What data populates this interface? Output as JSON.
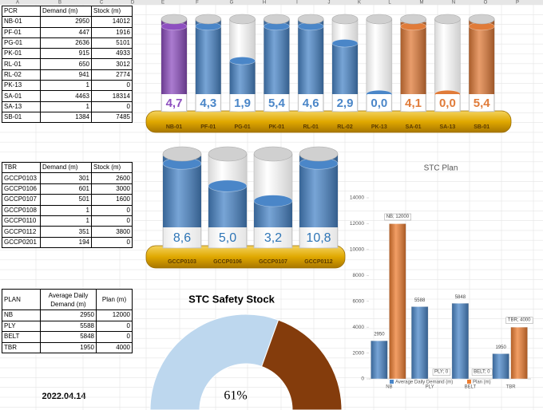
{
  "column_headers": [
    "A",
    "B",
    "C",
    "D",
    "E",
    "F",
    "G",
    "H",
    "I",
    "J",
    "K",
    "L",
    "M",
    "N",
    "O",
    "P"
  ],
  "tables": [
    {
      "headers": [
        "PCR",
        "Demand (m)",
        "Stock (m)"
      ],
      "rows": [
        [
          "NB-01",
          2950,
          14012
        ],
        [
          "PF-01",
          447,
          1916
        ],
        [
          "PG-01",
          2636,
          5101
        ],
        [
          "PK-01",
          915,
          4933
        ],
        [
          "RL-01",
          650,
          3012
        ],
        [
          "RL-02",
          941,
          2774
        ],
        [
          "PK-13",
          1,
          0
        ],
        [
          "SA-01",
          4463,
          18314
        ],
        [
          "SA-13",
          1,
          0
        ],
        [
          "SB-01",
          1384,
          7485
        ]
      ]
    },
    {
      "headers": [
        "TBR",
        "Demand (m)",
        "Stock (m)"
      ],
      "rows": [
        [
          "GCCP0103",
          301,
          2600
        ],
        [
          "GCCP0106",
          601,
          3000
        ],
        [
          "GCCP0107",
          501,
          1600
        ],
        [
          "GCCP0108",
          1,
          0
        ],
        [
          "GCCP0110",
          1,
          0
        ],
        [
          "GCCP0112",
          351,
          3800
        ],
        [
          "GCCP0201",
          194,
          0
        ]
      ]
    },
    {
      "headers": [
        "PLAN",
        "Average Daily Demand (m)",
        "Plan (m)"
      ],
      "rows": [
        [
          "NB",
          2950,
          12000
        ],
        [
          "PLY",
          5588,
          0
        ],
        [
          "BELT",
          5848,
          0
        ],
        [
          "TBR",
          1950,
          4000
        ]
      ]
    }
  ],
  "date": "2022.04.14",
  "chart_data": [
    {
      "type": "cylinder",
      "categories": [
        "NB-01",
        "PF-01",
        "PG-01",
        "PK-01",
        "RL-01",
        "RL-02",
        "PK-13",
        "SA-01",
        "SA-13",
        "SB-01"
      ],
      "values": [
        4.7,
        4.3,
        1.9,
        5.4,
        4.6,
        2.9,
        0.0,
        4.1,
        0.0,
        5.4
      ],
      "value_labels": [
        "4,7",
        "4,3",
        "1,9",
        "5,4",
        "4,6",
        "2,9",
        "0,0",
        "4,1",
        "0,0",
        "5,4"
      ],
      "colors": [
        "#8e4fc0",
        "#4a86c8",
        "#4a86c8",
        "#4a86c8",
        "#4a86c8",
        "#4a86c8",
        "#4a86c8",
        "#e07b39",
        "#e07b39",
        "#e07b39"
      ],
      "ylim": [
        0,
        4
      ]
    },
    {
      "type": "cylinder",
      "categories": [
        "GCCP0103",
        "GCCP0106",
        "GCCP0107",
        "GCCP0112"
      ],
      "values": [
        8.6,
        5.0,
        3.2,
        10.8
      ],
      "value_labels": [
        "8,6",
        "5,0",
        "3,2",
        "10,8"
      ],
      "colors": [
        "#4a86c8",
        "#4a86c8",
        "#4a86c8",
        "#4a86c8"
      ],
      "ylim": [
        0,
        8
      ]
    },
    {
      "type": "bar",
      "title": "STC Plan",
      "categories": [
        "NB",
        "PLY",
        "BELT",
        "TBR"
      ],
      "series": [
        {
          "name": "Average Daily Demand (m)",
          "color": "#4a86c8",
          "values": [
            2950,
            5588,
            5848,
            1950
          ]
        },
        {
          "name": "Plan (m)",
          "color": "#ed7d31",
          "values": [
            12000,
            0,
            0,
            4000
          ],
          "value_labels": [
            "NB; 12000",
            "PLY; 0",
            "BELT; 0",
            "TBR; 4000"
          ]
        }
      ],
      "ylim": [
        0,
        14000
      ],
      "yticks": [
        0,
        2000,
        4000,
        6000,
        8000,
        10000,
        12000,
        14000
      ],
      "legend": "bottom"
    },
    {
      "type": "gauge",
      "title": "STC Safety Stock",
      "value": 61,
      "value_label": "61%",
      "ylim": [
        0,
        100
      ],
      "colors": [
        "#bdd7ee",
        "#843c0c"
      ]
    }
  ]
}
